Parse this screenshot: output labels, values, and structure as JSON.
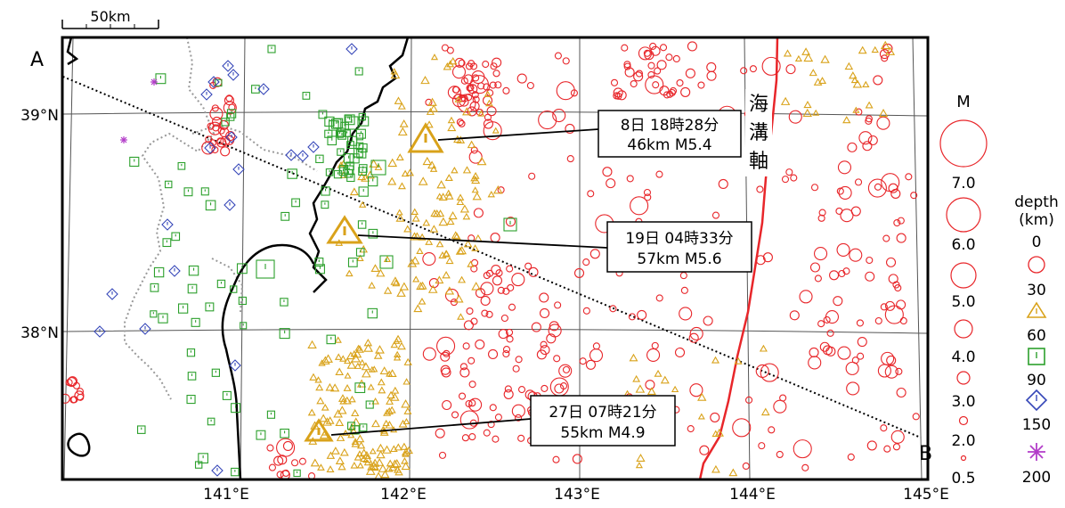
{
  "scale_label": "50km",
  "section": {
    "start_label": "A",
    "end_label": "B"
  },
  "trench_label": "海溝軸",
  "lat_labels": [
    "39°N",
    "38°N"
  ],
  "lon_labels": [
    "141°E",
    "142°E",
    "143°E",
    "144°E",
    "145°E"
  ],
  "callouts": [
    {
      "line1": "8日 18時28分",
      "line2": "46km  M5.4"
    },
    {
      "line1": "19日 04時33分",
      "line2": "57km  M5.6"
    },
    {
      "line1": "27日 07時21分",
      "line2": "55km  M4.9"
    }
  ],
  "legend": {
    "magnitude_title": "M",
    "magnitudes": [
      "7.0",
      "6.0",
      "5.0",
      "4.0",
      "3.0",
      "2.0",
      "0.5"
    ],
    "depth_title": "depth",
    "depth_unit": "(km)",
    "depths": [
      "0",
      "30",
      "60",
      "90",
      "150",
      "200"
    ]
  },
  "colors": {
    "depth_0_30": "#e8262a",
    "depth_30_60": "#d9a21a",
    "depth_60_90": "#2ca02c",
    "depth_90_150": "#3546b8",
    "depth_150_200": "#b23cc8",
    "trench": "#e8262a"
  }
}
